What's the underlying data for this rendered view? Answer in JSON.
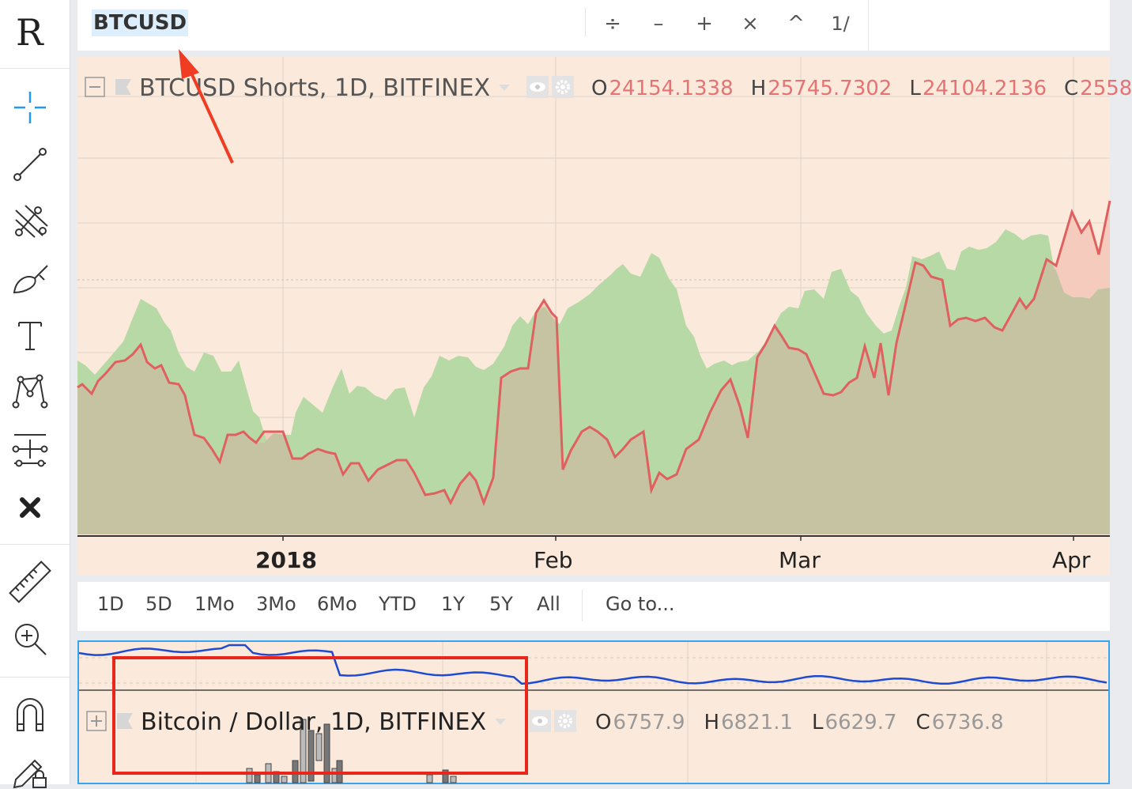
{
  "toolbar": {
    "symbol": "BTCUSD",
    "buttons": [
      "÷",
      "–",
      "+",
      "×",
      "^",
      "1/"
    ]
  },
  "left_toolbar": {
    "logo": "R",
    "tools": [
      "crosshair-icon",
      "trend-line-icon",
      "pitchfork-icon",
      "brush-icon",
      "text-icon",
      "pattern-icon",
      "measure-stack-icon",
      "remove-drawings-icon",
      "ruler-icon",
      "zoom-in-icon",
      "magnet-icon",
      "lock-pencil-icon"
    ]
  },
  "main_chart": {
    "title": "BTCUSD Shorts, 1D, BITFINEX",
    "open_key": "O",
    "open": "24154.1338",
    "high_key": "H",
    "high": "25745.7302",
    "low_key": "L",
    "low": "24104.2136",
    "close_key": "C",
    "close": "2558",
    "x_labels": [
      "2018",
      "Feb",
      "Mar",
      "Apr"
    ],
    "colors": {
      "background": "#fbeadb",
      "line": "#e06060",
      "area_green": "#b7d9a6",
      "area_red": "#f5cbbd",
      "area_under": "#c6c3a3"
    }
  },
  "range_bar": {
    "buttons": [
      "1D",
      "5D",
      "1Mo",
      "3Mo",
      "6Mo",
      "YTD",
      "1Y",
      "5Y",
      "All"
    ],
    "goto": "Go to..."
  },
  "second_chart": {
    "title": "Bitcoin / Dollar, 1D, BITFINEX",
    "open_key": "O",
    "open": "6757.9",
    "high_key": "H",
    "high": "6821.1",
    "low_key": "L",
    "low": "6629.7",
    "close_key": "C",
    "close": "6736.8"
  },
  "annotations": {
    "arrow_color": "#f03c22",
    "box_color": "#e8261c"
  }
}
